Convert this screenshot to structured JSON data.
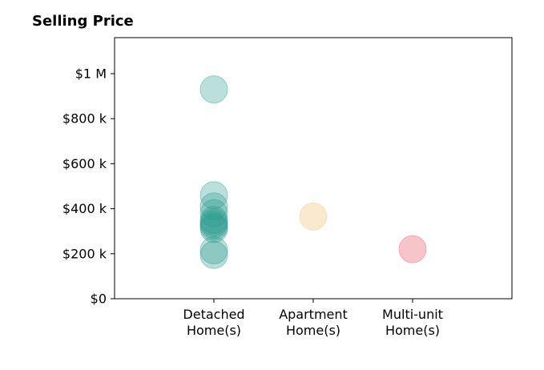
{
  "chart_data": {
    "type": "scatter",
    "title": "Selling Price",
    "xlabel": "",
    "ylabel": "",
    "ylim": [
      0,
      1160000
    ],
    "xlim": [
      0,
      4
    ],
    "grid": false,
    "categories": [
      [
        "Detached",
        "Home(s)"
      ],
      [
        "Apartment",
        "Home(s)"
      ],
      [
        "Multi-unit",
        "Home(s)"
      ]
    ],
    "yticks": [
      {
        "value": 0,
        "label": "$0"
      },
      {
        "value": 200000,
        "label": "$200 k"
      },
      {
        "value": 400000,
        "label": "$400 k"
      },
      {
        "value": 600000,
        "label": "$600 k"
      },
      {
        "value": 800000,
        "label": "$800 k"
      },
      {
        "value": 1000000,
        "label": "$1 M"
      }
    ],
    "series": [
      {
        "category_index": 0,
        "color": "#2a9d8f",
        "opacity": 0.32,
        "values": [
          930000,
          460000,
          410000,
          380000,
          350000,
          340000,
          330000,
          320000,
          310000,
          215000,
          195000
        ]
      },
      {
        "category_index": 1,
        "color": "#f4d9a8",
        "opacity": 0.55,
        "values": [
          365000
        ]
      },
      {
        "category_index": 2,
        "color": "#f08a94",
        "opacity": 0.5,
        "values": [
          220000
        ]
      }
    ]
  }
}
